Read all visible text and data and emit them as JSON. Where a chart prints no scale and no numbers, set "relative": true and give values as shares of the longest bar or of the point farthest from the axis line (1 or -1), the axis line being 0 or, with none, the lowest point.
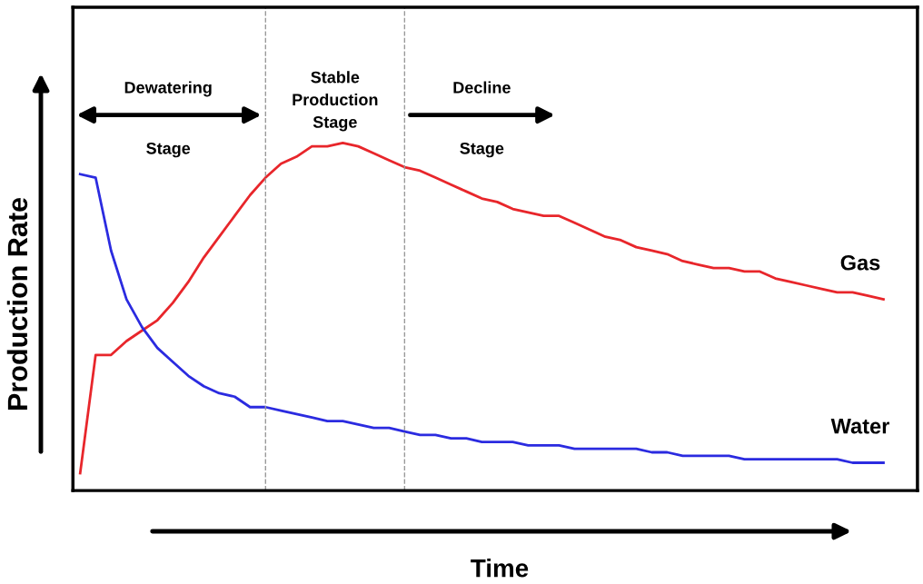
{
  "chart_data": {
    "type": "line",
    "relative": true,
    "xlabel": "Time",
    "ylabel": "Production Rate",
    "categories": [
      null,
      null,
      null,
      null,
      null,
      null,
      null,
      null,
      null,
      null,
      null,
      null,
      null,
      null,
      null,
      null,
      null,
      null,
      null,
      null,
      null,
      null,
      null,
      null,
      null,
      null,
      null,
      null,
      null,
      null,
      null,
      null,
      null,
      null,
      null,
      null,
      null,
      null,
      null,
      null,
      null,
      null,
      null,
      null,
      null,
      null,
      null,
      null,
      null,
      null,
      null,
      null,
      null
    ],
    "series": [
      {
        "name": "Gas",
        "color": "#e8262b",
        "values": [
          0.05,
          0.39,
          0.39,
          0.43,
          0.46,
          0.49,
          0.54,
          0.6,
          0.67,
          0.73,
          0.79,
          0.85,
          0.9,
          0.94,
          0.96,
          0.99,
          0.99,
          1.0,
          0.99,
          0.97,
          0.95,
          0.93,
          0.92,
          0.9,
          0.88,
          0.86,
          0.84,
          0.83,
          0.81,
          0.8,
          0.79,
          0.79,
          0.77,
          0.75,
          0.73,
          0.72,
          0.7,
          0.69,
          0.68,
          0.66,
          0.65,
          0.64,
          0.64,
          0.63,
          0.63,
          0.61,
          0.6,
          0.59,
          0.58,
          0.57,
          0.57,
          0.56,
          0.55
        ]
      },
      {
        "name": "Water",
        "color": "#2b2be0",
        "values": [
          0.91,
          0.9,
          0.69,
          0.55,
          0.47,
          0.41,
          0.37,
          0.33,
          0.3,
          0.28,
          0.27,
          0.24,
          0.24,
          0.23,
          0.22,
          0.21,
          0.2,
          0.2,
          0.19,
          0.18,
          0.18,
          0.17,
          0.16,
          0.16,
          0.15,
          0.15,
          0.14,
          0.14,
          0.14,
          0.13,
          0.13,
          0.13,
          0.12,
          0.12,
          0.12,
          0.12,
          0.12,
          0.11,
          0.11,
          0.1,
          0.1,
          0.1,
          0.1,
          0.09,
          0.09,
          0.09,
          0.09,
          0.09,
          0.09,
          0.09,
          0.08,
          0.08,
          0.08
        ]
      }
    ],
    "annotations": [
      "Dewatering",
      "Stage",
      "Stable\nProduction\nStage",
      "Decline",
      "Stage"
    ],
    "legend": false,
    "marker": "none",
    "line_style": "solid"
  }
}
